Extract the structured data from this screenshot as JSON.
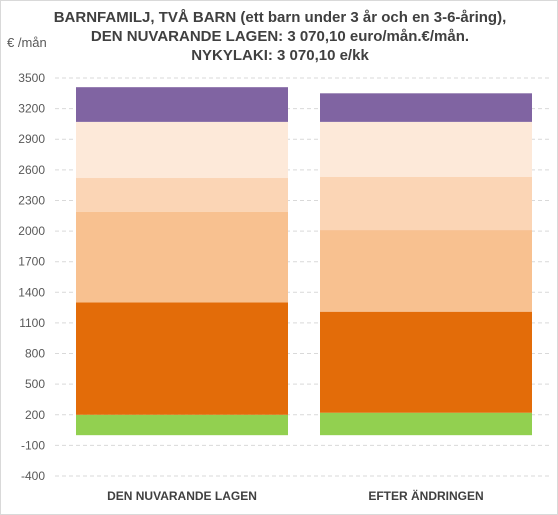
{
  "chart_data": {
    "type": "bar",
    "stacked": true,
    "title_lines": [
      "BARNFAMILJ, TVÅ BARN (ett barn under 3 år och en 3-6-åring),",
      "DEN NUVARANDE LAGEN: 3 070,10 euro/mån.€/mån.",
      "NYKYLAKI: 3 070,10 e/kk"
    ],
    "ylabel": "€ /mån",
    "xlabel": "",
    "ylim": [
      -400,
      3500
    ],
    "yticks": [
      -400,
      -100,
      200,
      500,
      800,
      1100,
      1400,
      1700,
      2000,
      2300,
      2600,
      2900,
      3200,
      3500
    ],
    "grid": true,
    "legend": "none",
    "categories": [
      "DEN NUVARANDE LAGEN",
      "EFTER ÄNDRINGEN"
    ],
    "series": [
      {
        "color": "#92d050",
        "values": [
          200,
          220
        ]
      },
      {
        "color": "#e36c09",
        "values": [
          1100,
          990
        ]
      },
      {
        "color": "#f8c190",
        "values": [
          890,
          800
        ]
      },
      {
        "color": "#fbd5b5",
        "values": [
          330,
          520
        ]
      },
      {
        "color": "#fde9d9",
        "values": [
          550,
          540
        ]
      },
      {
        "color": "#8064a2",
        "values": [
          340,
          280
        ]
      }
    ]
  }
}
